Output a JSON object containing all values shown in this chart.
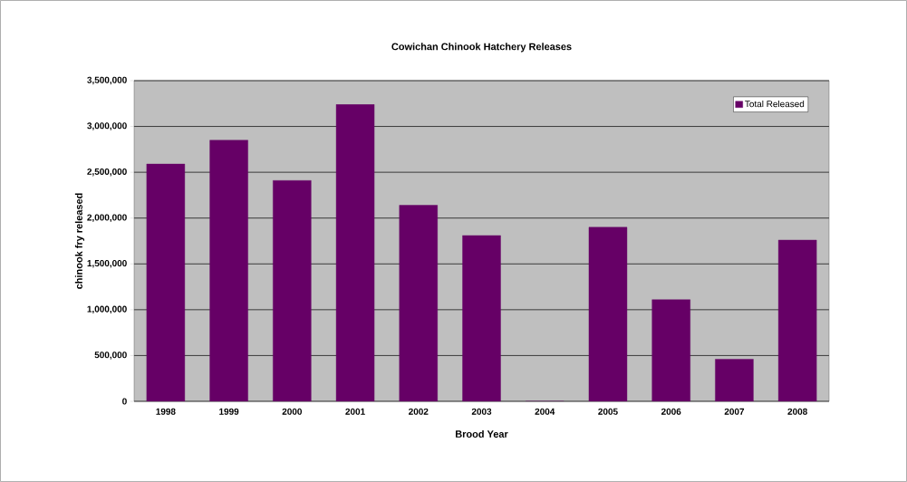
{
  "chart_data": {
    "type": "bar",
    "title": "Cowichan Chinook Hatchery Releases",
    "xlabel": "Brood Year",
    "ylabel": "chinook fry released",
    "categories": [
      "1998",
      "1999",
      "2000",
      "2001",
      "2002",
      "2003",
      "2004",
      "2005",
      "2006",
      "2007",
      "2008"
    ],
    "series": [
      {
        "name": "Total Released",
        "color": "#660066",
        "values": [
          2590000,
          2850000,
          2410000,
          3240000,
          2140000,
          1810000,
          0,
          1900000,
          1110000,
          460000,
          1760000
        ]
      }
    ],
    "ylim": [
      0,
      3500000
    ],
    "yticks": [
      0,
      {
        "value": 500000,
        "label": "500,000"
      },
      {
        "value": 1000000,
        "label": "1,000,000"
      },
      {
        "value": 1500000,
        "label": "1,500,000"
      },
      {
        "value": 2000000,
        "label": "2,000,000"
      },
      {
        "value": 2500000,
        "label": "2,500,000"
      },
      {
        "value": 3000000,
        "label": "3,000,000"
      },
      {
        "value": 3500000,
        "label": "3,500,000"
      }
    ],
    "grid": "y",
    "legend": "top right"
  }
}
